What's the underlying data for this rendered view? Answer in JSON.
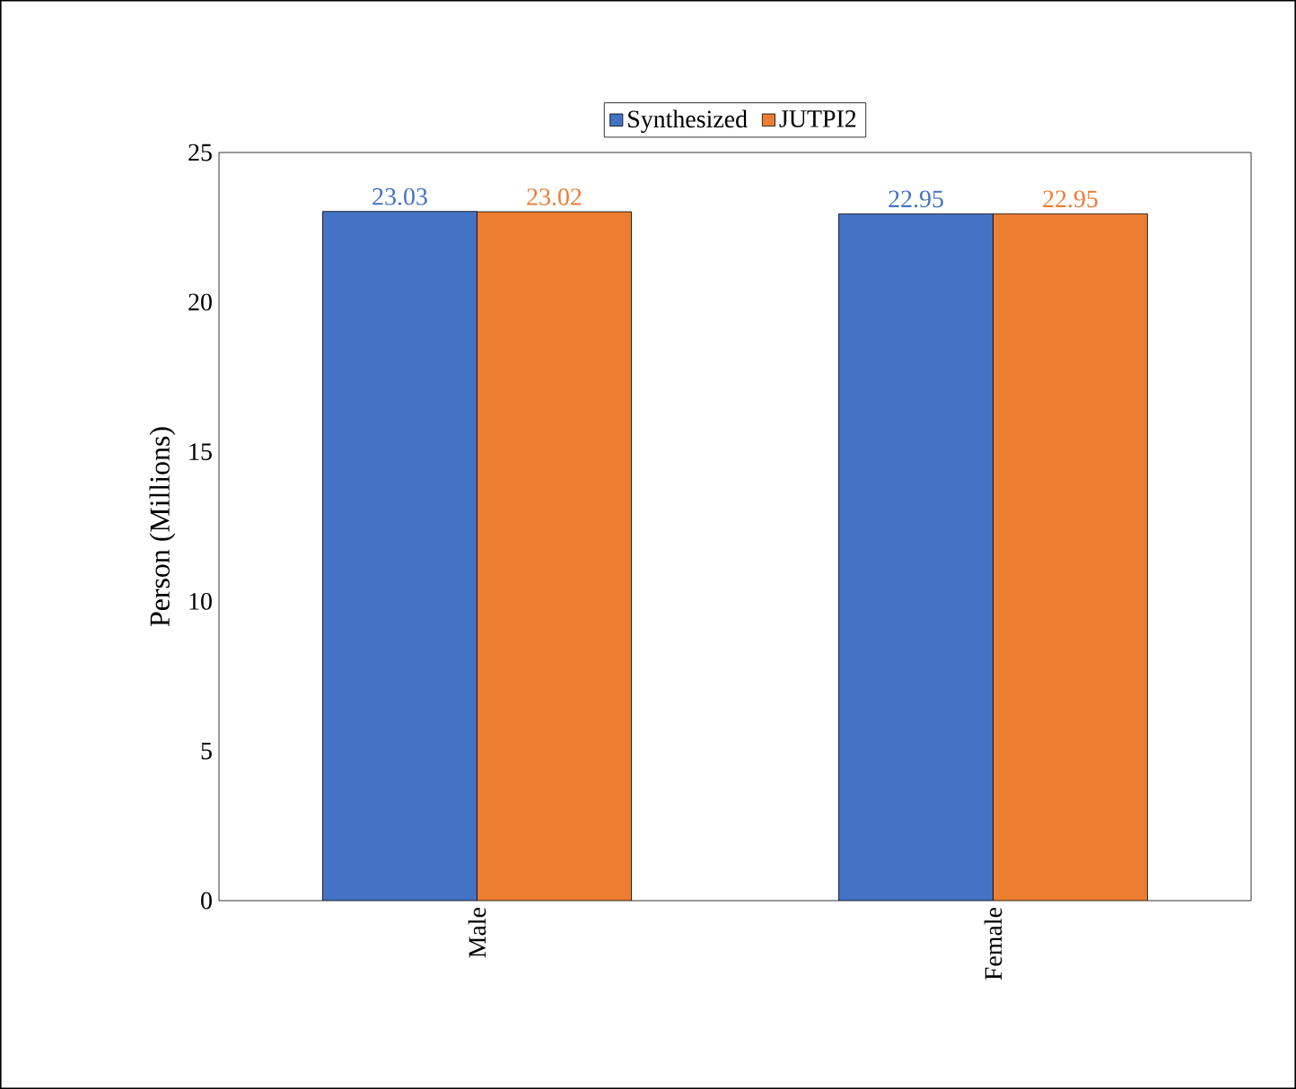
{
  "chart_data": {
    "type": "bar",
    "ylabel": "Person  (Millions)",
    "categories": [
      "Male",
      "Female"
    ],
    "series": [
      {
        "name": "Synthesized",
        "color": "#4472c4",
        "values": [
          23.03,
          22.95
        ]
      },
      {
        "name": "JUTPI2",
        "color": "#ed7d31",
        "values": [
          23.02,
          22.95
        ]
      }
    ],
    "ylim": [
      0,
      25
    ],
    "yticks": [
      0,
      5,
      10,
      15,
      20,
      25
    ],
    "data_labels": true,
    "legend": "top",
    "grid": false
  }
}
